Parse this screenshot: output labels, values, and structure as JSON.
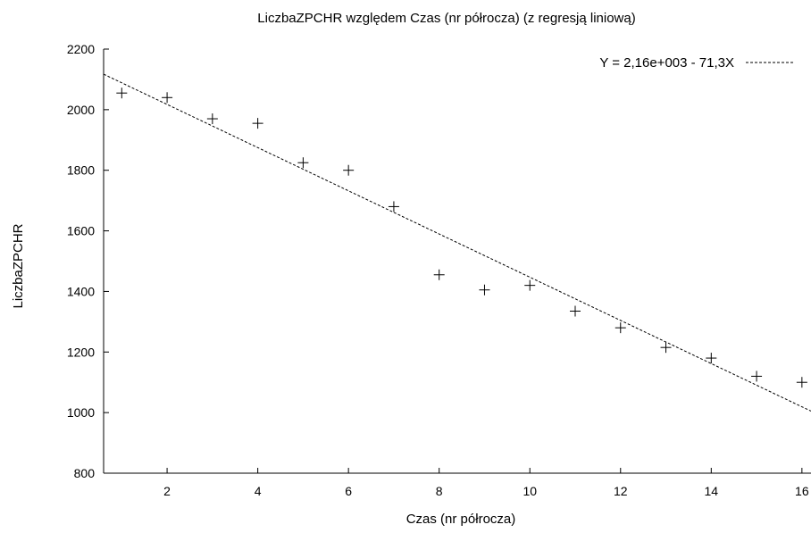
{
  "chart_data": {
    "type": "scatter",
    "title": "LiczbaZPCHR względem Czas  (nr półrocza) (z regresją liniową)",
    "xlabel": "Czas  (nr półrocza)",
    "ylabel": "LiczbaZPCHR",
    "xlim": [
      0.6,
      16.2
    ],
    "ylim": [
      800,
      2200
    ],
    "xticks": [
      "2",
      "4",
      "6",
      "8",
      "10",
      "12",
      "14",
      "16"
    ],
    "yticks": [
      "800",
      "1000",
      "1200",
      "1400",
      "1600",
      "1800",
      "2000",
      "2200"
    ],
    "grid": false,
    "legend_position": "top-right",
    "series": [
      {
        "x": [
          1,
          2,
          3,
          4,
          5,
          6,
          7,
          8,
          9,
          10,
          11,
          12,
          13,
          14,
          15,
          16
        ],
        "y": [
          2055,
          2040,
          1970,
          1955,
          1825,
          1800,
          1680,
          1455,
          1405,
          1420,
          1335,
          1280,
          1215,
          1180,
          1120,
          1100
        ]
      }
    ],
    "regression": {
      "label": "Y = 2,16e+003 - 71,3X",
      "intercept": 2160,
      "slope": -71.3
    },
    "colors": {
      "points": "#000000",
      "line": "#000000"
    }
  }
}
